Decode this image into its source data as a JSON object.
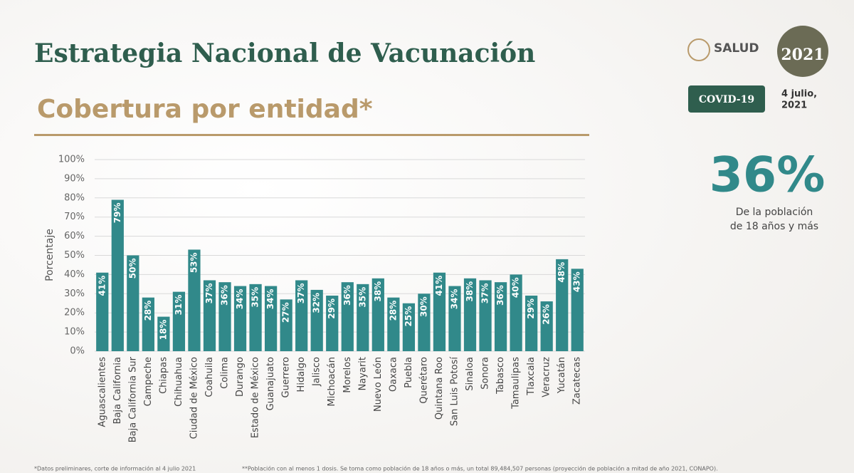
{
  "header": {
    "title": "Estrategia Nacional de Vacunación",
    "subtitle": "Cobertura por entidad*"
  },
  "logos": {
    "salud": "SALUD",
    "year": "2021"
  },
  "badge": "COVID-19",
  "date": [
    "4 julio,",
    "2021"
  ],
  "headline": {
    "value": "36%",
    "caption": [
      "De la población",
      "de 18 años y más"
    ]
  },
  "footnotes": [
    "*Datos preliminares, corte de información al 4 julio 2021",
    "**Población con al menos 1 dosis. Se toma como población de 18 años o más, un total 89,484,507 personas (proyección de población a mitad de año 2021, CONAPO)."
  ],
  "chart_data": {
    "type": "bar",
    "y_label": "Porcentaje",
    "color": "#31898a",
    "grid": true,
    "categories": [
      "Aguascalientes",
      "Baja California",
      "Baja California Sur",
      "Campeche",
      "Chiapas",
      "Chihuahua",
      "Ciudad de México",
      "Coahuila",
      "Colima",
      "Durango",
      "Estado de México",
      "Guanajuato",
      "Guerrero",
      "Hidalgo",
      "Jalisco",
      "Michoacán",
      "Morelos",
      "Nayarit",
      "Nuevo León",
      "Oaxaca",
      "Puebla",
      "Querétaro",
      "Quintana Roo",
      "San Luis Potosí",
      "Sinaloa",
      "Sonora",
      "Tabasco",
      "Tamaulipas",
      "Tlaxcala",
      "Veracruz",
      "Yucatán",
      "Zacatecas"
    ],
    "values": [
      41,
      79,
      50,
      28,
      18,
      31,
      53,
      37,
      36,
      34,
      35,
      34,
      27,
      37,
      32,
      29,
      36,
      35,
      38,
      28,
      25,
      30,
      41,
      34,
      38,
      37,
      36,
      40,
      29,
      26,
      48,
      43
    ],
    "value_labels": [
      "41%",
      "79%",
      "50%",
      "28%",
      "18%",
      "31%",
      "53%",
      "37%",
      "36%",
      "34%",
      "35%",
      "34%",
      "27%",
      "37%",
      "32%",
      "29%",
      "36%",
      "35%",
      "38%",
      "28%",
      "25%",
      "30%",
      "41%",
      "34%",
      "38%",
      "37%",
      "36%",
      "40%",
      "29%",
      "26%",
      "48%",
      "43%"
    ],
    "ylim": [
      0,
      100
    ],
    "yticks": [
      {
        "value": 0,
        "label": "0%"
      },
      {
        "value": 10,
        "label": "10%"
      },
      {
        "value": 20,
        "label": "20%"
      },
      {
        "value": 30,
        "label": "30%"
      },
      {
        "value": 40,
        "label": "40%"
      },
      {
        "value": 50,
        "label": "50%"
      },
      {
        "value": 60,
        "label": "60%"
      },
      {
        "value": 70,
        "label": "70%"
      },
      {
        "value": 80,
        "label": "80%"
      },
      {
        "value": 90,
        "label": "90%"
      },
      {
        "value": 100,
        "label": "100%"
      }
    ]
  }
}
